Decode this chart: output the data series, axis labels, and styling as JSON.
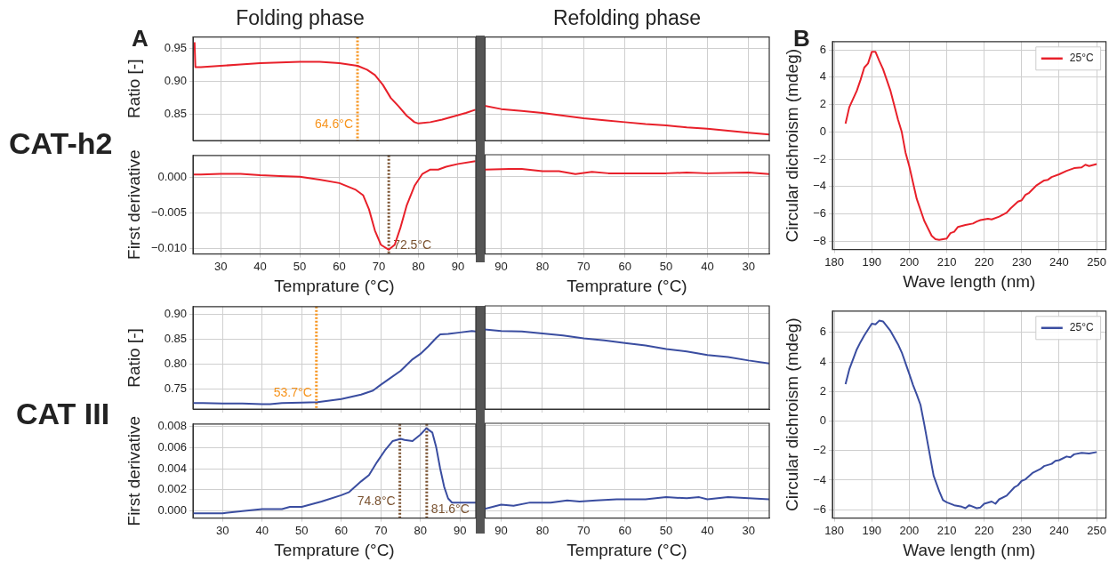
{
  "chart_data": [
    {
      "type": "line",
      "title": "Folding phase",
      "ylabel": "Ratio [-]",
      "annotations": [
        "A",
        "CAT-h2"
      ],
      "grid": true,
      "tick_labels": "y",
      "xlim": [
        23,
        94.5
      ],
      "ylim": [
        0.81,
        0.968
      ],
      "xticks": [
        {
          "value": 30,
          "label": null
        },
        {
          "value": 40,
          "label": null
        },
        {
          "value": 50,
          "label": null
        },
        {
          "value": 60,
          "label": null
        },
        {
          "value": 70,
          "label": null
        },
        {
          "value": 80,
          "label": null
        },
        {
          "value": 90,
          "label": null
        }
      ],
      "yticks": [
        {
          "value": 0.85,
          "label": "0.85"
        },
        {
          "value": 0.9,
          "label": "0.90"
        },
        {
          "value": 0.95,
          "label": "0.95"
        }
      ],
      "ref_lines": [
        {
          "axis": "x",
          "value": 64.6,
          "label": "64.6°C",
          "color": "#f7941d",
          "line_style": "dotted"
        }
      ],
      "series": [
        {
          "color": "#e8202a",
          "x": [
            23.4,
            23.6,
            25,
            30,
            35,
            40,
            45,
            50,
            55,
            60,
            64.6,
            67,
            69,
            71,
            73,
            75,
            77,
            79,
            80,
            83,
            86,
            89,
            92,
            94.4
          ],
          "values": [
            0.96,
            0.922,
            0.922,
            0.924,
            0.926,
            0.928,
            0.929,
            0.93,
            0.93,
            0.928,
            0.924,
            0.918,
            0.91,
            0.895,
            0.875,
            0.862,
            0.848,
            0.838,
            0.836,
            0.838,
            0.842,
            0.847,
            0.852,
            0.857
          ]
        }
      ]
    },
    {
      "type": "line",
      "title": "Refolding phase",
      "grid": true,
      "tick_labels": false,
      "xlim": [
        94,
        25
      ],
      "ylim": [
        0.81,
        0.968
      ],
      "xticks": [
        {
          "value": 90,
          "label": null
        },
        {
          "value": 80,
          "label": null
        },
        {
          "value": 70,
          "label": null
        },
        {
          "value": 60,
          "label": null
        },
        {
          "value": 50,
          "label": null
        },
        {
          "value": 40,
          "label": null
        },
        {
          "value": 30,
          "label": null
        }
      ],
      "yticks": [
        {
          "value": 0.85,
          "label": null
        },
        {
          "value": 0.9,
          "label": null
        },
        {
          "value": 0.95,
          "label": null
        }
      ],
      "series": [
        {
          "color": "#e8202a",
          "x": [
            94,
            90,
            85,
            80,
            75,
            70,
            65,
            60,
            55,
            50,
            45,
            40,
            35,
            30,
            25
          ],
          "values": [
            0.863,
            0.858,
            0.855,
            0.852,
            0.848,
            0.844,
            0.841,
            0.838,
            0.835,
            0.833,
            0.83,
            0.828,
            0.825,
            0.822,
            0.819
          ]
        }
      ]
    },
    {
      "type": "line",
      "xlabel": "Temprature (°C)",
      "ylabel": "First derivative",
      "grid": true,
      "xlim": [
        23,
        94.5
      ],
      "ylim": [
        -0.0108,
        0.0031
      ],
      "xticks": [
        30,
        40,
        50,
        60,
        70,
        80,
        90
      ],
      "yticks": [
        {
          "value": -0.01,
          "label": "−0.010"
        },
        {
          "value": -0.005,
          "label": "−0.005"
        },
        {
          "value": 0,
          "label": "0.000"
        }
      ],
      "ref_lines": [
        {
          "axis": "x",
          "value": 72.5,
          "label": "72.5°C",
          "color": "#7a5230",
          "line_style": "dotted"
        }
      ],
      "series": [
        {
          "color": "#e8202a",
          "x": [
            23.2,
            25,
            30,
            35,
            40,
            45,
            50,
            55,
            60,
            64,
            66,
            67.5,
            69,
            70.5,
            72.5,
            74,
            75.5,
            77,
            79,
            81,
            83,
            85,
            87,
            90,
            94.4
          ],
          "values": [
            0.0004,
            0.0004,
            0.0005,
            0.0005,
            0.0003,
            0.0002,
            0.0001,
            -0.0003,
            -0.0008,
            -0.0017,
            -0.0025,
            -0.0045,
            -0.0075,
            -0.0095,
            -0.0102,
            -0.0095,
            -0.007,
            -0.004,
            -0.0012,
            0.0005,
            0.0011,
            0.0011,
            0.0015,
            0.0019,
            0.0023
          ]
        }
      ]
    },
    {
      "type": "line",
      "xlabel": "Temprature (°C)",
      "grid": true,
      "tick_labels": "x",
      "xlim": [
        94,
        25
      ],
      "ylim": [
        -0.0108,
        0.0031
      ],
      "xticks": [
        90,
        80,
        70,
        60,
        50,
        40,
        30
      ],
      "yticks": [
        {
          "value": -0.01,
          "label": null
        },
        {
          "value": -0.005,
          "label": null
        },
        {
          "value": 0,
          "label": null
        }
      ],
      "series": [
        {
          "color": "#e8202a",
          "x": [
            94,
            88,
            85,
            80,
            76,
            72,
            68,
            64,
            55,
            50,
            45,
            40,
            30,
            25
          ],
          "values": [
            0.001,
            0.0011,
            0.0011,
            0.0008,
            0.0008,
            0.0004,
            0.0007,
            0.0005,
            0.0005,
            0.0005,
            0.0006,
            0.0005,
            0.0006,
            0.0004
          ]
        }
      ]
    },
    {
      "type": "line",
      "xlabel": "Wave length (nm)",
      "ylabel": "Circular dichroism (mdeg)",
      "annotations": [
        "B"
      ],
      "grid": true,
      "legend": "top right",
      "xlim": [
        179.5,
        252.5
      ],
      "ylim": [
        -8.6,
        6.6
      ],
      "xticks": [
        180,
        190,
        200,
        210,
        220,
        230,
        240,
        250
      ],
      "yticks": [
        {
          "value": -8,
          "label": "−8"
        },
        {
          "value": -6,
          "label": "−6"
        },
        {
          "value": -4,
          "label": "−4"
        },
        {
          "value": -2,
          "label": "−2"
        },
        0,
        2,
        4,
        6
      ],
      "series": [
        {
          "name": "25°C",
          "color": "#e8202a",
          "x": [
            183,
            184,
            186,
            187,
            188,
            189,
            190,
            191,
            192,
            193,
            195,
            197,
            198,
            199,
            200,
            202,
            204,
            206,
            207,
            208,
            210,
            211,
            212,
            213,
            215,
            217,
            218,
            219,
            221,
            222,
            224,
            226,
            227,
            229,
            230,
            231,
            232,
            234,
            236,
            237,
            238,
            240,
            242,
            244,
            246,
            247,
            248,
            250
          ],
          "values": [
            0.6,
            1.8,
            3,
            3.8,
            4.7,
            5,
            5.85,
            5.85,
            5.2,
            4.6,
            3,
            0.9,
            0,
            -1.5,
            -2.5,
            -4.9,
            -6.5,
            -7.6,
            -7.85,
            -7.9,
            -7.8,
            -7.4,
            -7.3,
            -6.95,
            -6.8,
            -6.7,
            -6.55,
            -6.45,
            -6.35,
            -6.4,
            -6.2,
            -5.9,
            -5.6,
            -5.1,
            -5,
            -4.6,
            -4.45,
            -3.9,
            -3.55,
            -3.5,
            -3.3,
            -3.1,
            -2.85,
            -2.65,
            -2.6,
            -2.4,
            -2.5,
            -2.35
          ]
        }
      ]
    },
    {
      "type": "line",
      "ylabel": "Ratio [-]",
      "annotations": [
        "CAT III"
      ],
      "grid": true,
      "tick_labels": "y",
      "xlim": [
        22.5,
        94
      ],
      "ylim": [
        0.709,
        0.915
      ],
      "xticks": [
        {
          "value": 30,
          "label": null
        },
        {
          "value": 40,
          "label": null
        },
        {
          "value": 50,
          "label": null
        },
        {
          "value": 60,
          "label": null
        },
        {
          "value": 70,
          "label": null
        },
        {
          "value": 80,
          "label": null
        },
        {
          "value": 90,
          "label": null
        }
      ],
      "yticks": [
        {
          "value": 0.75,
          "label": "0.75"
        },
        {
          "value": 0.8,
          "label": "0.80"
        },
        {
          "value": 0.85,
          "label": "0.85"
        },
        {
          "value": 0.9,
          "label": "0.90"
        }
      ],
      "ref_lines": [
        {
          "axis": "x",
          "value": 53.7,
          "label": "53.7°C",
          "color": "#f7941d",
          "line_style": "dotted"
        }
      ],
      "series": [
        {
          "color": "#3a4da0",
          "x": [
            22.5,
            25,
            30,
            35,
            40,
            42,
            45,
            50,
            54,
            57,
            60,
            65,
            68,
            70,
            72,
            75,
            78,
            80,
            82,
            84,
            85,
            87,
            90,
            93,
            94
          ],
          "values": [
            0.721,
            0.721,
            0.72,
            0.72,
            0.719,
            0.719,
            0.721,
            0.722,
            0.723,
            0.726,
            0.729,
            0.738,
            0.746,
            0.758,
            0.769,
            0.786,
            0.809,
            0.82,
            0.835,
            0.852,
            0.859,
            0.86,
            0.863,
            0.866,
            0.865
          ]
        }
      ]
    },
    {
      "type": "line",
      "grid": true,
      "tick_labels": false,
      "xlim": [
        94,
        25
      ],
      "ylim": [
        0.709,
        0.915
      ],
      "xticks": [
        {
          "value": 90,
          "label": null
        },
        {
          "value": 80,
          "label": null
        },
        {
          "value": 70,
          "label": null
        },
        {
          "value": 60,
          "label": null
        },
        {
          "value": 50,
          "label": null
        },
        {
          "value": 40,
          "label": null
        },
        {
          "value": 30,
          "label": null
        }
      ],
      "yticks": [
        {
          "value": 0.75,
          "label": null
        },
        {
          "value": 0.8,
          "label": null
        },
        {
          "value": 0.85,
          "label": null
        },
        {
          "value": 0.9,
          "label": null
        }
      ],
      "series": [
        {
          "color": "#3a4da0",
          "x": [
            94,
            90,
            85,
            80,
            75,
            70,
            65,
            60,
            55,
            50,
            45,
            40,
            35,
            30,
            25
          ],
          "values": [
            0.868,
            0.865,
            0.864,
            0.86,
            0.856,
            0.85,
            0.846,
            0.841,
            0.836,
            0.829,
            0.824,
            0.817,
            0.813,
            0.806,
            0.8
          ]
        }
      ]
    },
    {
      "type": "line",
      "xlabel": "Temprature (°C)",
      "ylabel": "First derivative",
      "grid": true,
      "xlim": [
        22.5,
        94
      ],
      "ylim": [
        -0.00065,
        0.0082
      ],
      "xticks": [
        30,
        40,
        50,
        60,
        70,
        80,
        90
      ],
      "yticks": [
        {
          "value": 0,
          "label": "0.000"
        },
        {
          "value": 0.002,
          "label": "0.002"
        },
        {
          "value": 0.004,
          "label": "0.004"
        },
        {
          "value": 0.006,
          "label": "0.006"
        },
        {
          "value": 0.008,
          "label": "0.008"
        }
      ],
      "ref_lines": [
        {
          "axis": "x",
          "value": 74.8,
          "label": "74.8°C",
          "color": "#7a5230",
          "line_style": "dotted"
        },
        {
          "axis": "x",
          "value": 81.6,
          "label": "81.6°C",
          "color": "#7a5230",
          "line_style": "dotted"
        }
      ],
      "series": [
        {
          "color": "#3a4da0",
          "x": [
            22.5,
            25,
            30,
            35,
            40,
            45,
            47,
            50,
            55,
            60,
            62,
            65,
            67,
            69,
            71,
            73,
            75,
            76,
            78,
            80,
            81.5,
            83,
            84,
            85,
            86,
            87,
            88,
            94
          ],
          "values": [
            -0.0002,
            -0.0002,
            -0.0002,
            0,
            0.0002,
            0.0002,
            0.0004,
            0.0004,
            0.0009,
            0.0015,
            0.0018,
            0.0028,
            0.0034,
            0.0046,
            0.0057,
            0.0066,
            0.0068,
            0.0067,
            0.0066,
            0.0072,
            0.0078,
            0.0074,
            0.006,
            0.004,
            0.0023,
            0.0012,
            0.0008,
            0.0008
          ]
        }
      ]
    },
    {
      "type": "line",
      "xlabel": "Temprature (°C)",
      "grid": true,
      "tick_labels": "x",
      "xlim": [
        94,
        25
      ],
      "ylim": [
        -0.00065,
        0.0082
      ],
      "xticks": [
        90,
        80,
        70,
        60,
        50,
        40,
        30
      ],
      "yticks": [
        {
          "value": 0,
          "label": null
        },
        {
          "value": 0.002,
          "label": null
        },
        {
          "value": 0.004,
          "label": null
        },
        {
          "value": 0.006,
          "label": null
        },
        {
          "value": 0.008,
          "label": null
        }
      ],
      "series": [
        {
          "color": "#3a4da0",
          "x": [
            94,
            90,
            87,
            83,
            78,
            74,
            71,
            67,
            62,
            55,
            50,
            45,
            42,
            40,
            35,
            30,
            25
          ],
          "values": [
            0.0002,
            0.0006,
            0.0005,
            0.0008,
            0.0008,
            0.001,
            0.0009,
            0.001,
            0.0011,
            0.0011,
            0.0013,
            0.0012,
            0.0013,
            0.0011,
            0.0013,
            0.0012,
            0.0011
          ]
        }
      ]
    },
    {
      "type": "line",
      "xlabel": "Wave length (nm)",
      "ylabel": "Circular dichroism (mdeg)",
      "grid": true,
      "legend": "top right",
      "xlim": [
        179.5,
        252.5
      ],
      "ylim": [
        -6.57,
        7.45
      ],
      "xticks": [
        180,
        190,
        200,
        210,
        220,
        230,
        240,
        250
      ],
      "yticks": [
        {
          "value": -6,
          "label": "−6"
        },
        {
          "value": -4,
          "label": "−4"
        },
        {
          "value": -2,
          "label": "−2"
        },
        0,
        2,
        4,
        6
      ],
      "series": [
        {
          "name": "25°C",
          "color": "#3a4da0",
          "x": [
            183,
            184,
            186,
            187,
            188,
            190,
            191,
            192,
            193,
            195,
            197,
            198,
            200,
            201,
            202,
            203,
            204,
            205,
            206,
            206.5,
            208,
            209,
            210,
            212,
            214,
            215,
            216,
            218,
            219,
            220,
            222,
            223,
            224,
            226,
            228,
            229,
            230,
            231,
            233,
            235,
            236,
            238,
            239,
            240,
            242,
            243,
            244,
            246,
            248,
            250
          ],
          "values": [
            2.5,
            3.5,
            4.85,
            5.35,
            5.8,
            6.6,
            6.55,
            6.8,
            6.75,
            6.1,
            5.2,
            4.65,
            3.2,
            2.45,
            1.8,
            1.1,
            -0.2,
            -1.6,
            -3,
            -3.7,
            -4.75,
            -5.35,
            -5.5,
            -5.7,
            -5.8,
            -5.9,
            -5.7,
            -5.9,
            -5.85,
            -5.6,
            -5.45,
            -5.6,
            -5.3,
            -5.05,
            -4.5,
            -4.35,
            -4.05,
            -3.95,
            -3.5,
            -3.25,
            -3.05,
            -2.9,
            -2.7,
            -2.65,
            -2.4,
            -2.45,
            -2.25,
            -2.15,
            -2.2,
            -2.1
          ]
        }
      ]
    }
  ]
}
